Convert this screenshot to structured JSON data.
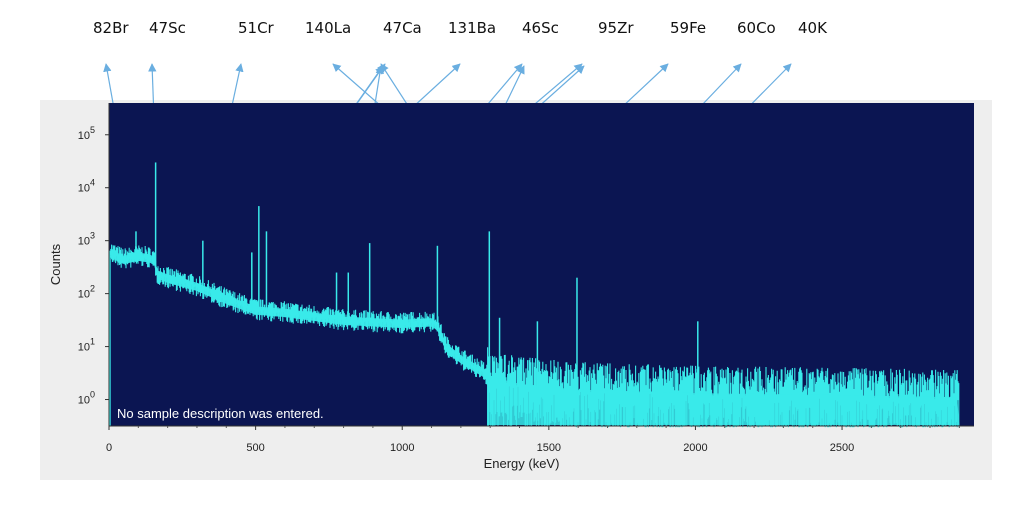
{
  "chart_data": {
    "type": "line",
    "title": "",
    "xlabel": "Energy (keV)",
    "ylabel": "Counts",
    "xlim": [
      0,
      2950
    ],
    "ylim_log10": [
      -0.5,
      5.6
    ],
    "log_y": true,
    "x_ticks": [
      0,
      500,
      1000,
      1500,
      2000,
      2500
    ],
    "y_ticks": [
      {
        "value": 1,
        "base": "10",
        "exp": "0"
      },
      {
        "value": 10,
        "base": "10",
        "exp": "1"
      },
      {
        "value": 100,
        "base": "10",
        "exp": "2"
      },
      {
        "value": 1000,
        "base": "10",
        "exp": "3"
      },
      {
        "value": 10000,
        "base": "10",
        "exp": "4"
      },
      {
        "value": 100000,
        "base": "10",
        "exp": "5"
      }
    ],
    "plot_background": "#0b1552",
    "series_color": "#39eaea",
    "annotation_color": "#6aaee0",
    "note": "No sample description was entered.",
    "continuum": [
      [
        5,
        600
      ],
      [
        50,
        450
      ],
      [
        100,
        520
      ],
      [
        140,
        480
      ],
      [
        155,
        420
      ],
      [
        165,
        240
      ],
      [
        200,
        200
      ],
      [
        300,
        140
      ],
      [
        400,
        80
      ],
      [
        500,
        50
      ],
      [
        600,
        45
      ],
      [
        700,
        38
      ],
      [
        800,
        32
      ],
      [
        900,
        30
      ],
      [
        1000,
        28
      ],
      [
        1100,
        30
      ],
      [
        1120,
        25
      ],
      [
        1150,
        10
      ],
      [
        1200,
        6
      ],
      [
        1290,
        3
      ],
      [
        1300,
        2.5
      ],
      [
        1400,
        1.8
      ],
      [
        1600,
        1.4
      ],
      [
        2000,
        1.2
      ],
      [
        2500,
        1.1
      ],
      [
        2900,
        1.0
      ]
    ],
    "peaks": [
      {
        "x": 92,
        "counts": 1500
      },
      {
        "x": 159,
        "counts": 30000
      },
      {
        "x": 320,
        "counts": 1000
      },
      {
        "x": 487,
        "counts": 600
      },
      {
        "x": 511,
        "counts": 4500
      },
      {
        "x": 537,
        "counts": 1500
      },
      {
        "x": 776,
        "counts": 250
      },
      {
        "x": 816,
        "counts": 250
      },
      {
        "x": 889,
        "counts": 900
      },
      {
        "x": 1120,
        "counts": 800
      },
      {
        "x": 1297,
        "counts": 1500
      },
      {
        "x": 1332,
        "counts": 35
      },
      {
        "x": 1461,
        "counts": 30
      },
      {
        "x": 1596,
        "counts": 200
      },
      {
        "x": 2008,
        "counts": 30
      }
    ],
    "annotations": [
      {
        "label": "82Br",
        "peak_x": 92
      },
      {
        "label": "47Sc",
        "peak_x": 159
      },
      {
        "label": "51Cr",
        "peak_x": 320
      },
      {
        "label": "140La",
        "peak_x": 1596
      },
      {
        "label": "47Ca",
        "peak_x": 1297
      },
      {
        "label": "47Ca",
        "peak_x": 487
      },
      {
        "label": "47Ca",
        "peak_x": 537
      },
      {
        "label": "47Ca",
        "peak_x": 816
      },
      {
        "label": "131Ba",
        "peak_x": 496
      },
      {
        "label": "46Sc",
        "peak_x": 889
      },
      {
        "label": "46Sc",
        "peak_x": 1120
      },
      {
        "label": "95Zr",
        "peak_x": 776
      },
      {
        "label": "95Zr",
        "peak_x": 757
      },
      {
        "label": "59Fe",
        "peak_x": 1297
      },
      {
        "label": "60Co",
        "peak_x": 1332
      },
      {
        "label": "40K",
        "peak_x": 1461
      }
    ],
    "isotope_labels": [
      "82Br",
      "47Sc",
      "51Cr",
      "140La",
      "47Ca",
      "131Ba",
      "46Sc",
      "95Zr",
      "59Fe",
      "60Co",
      "40K"
    ]
  }
}
